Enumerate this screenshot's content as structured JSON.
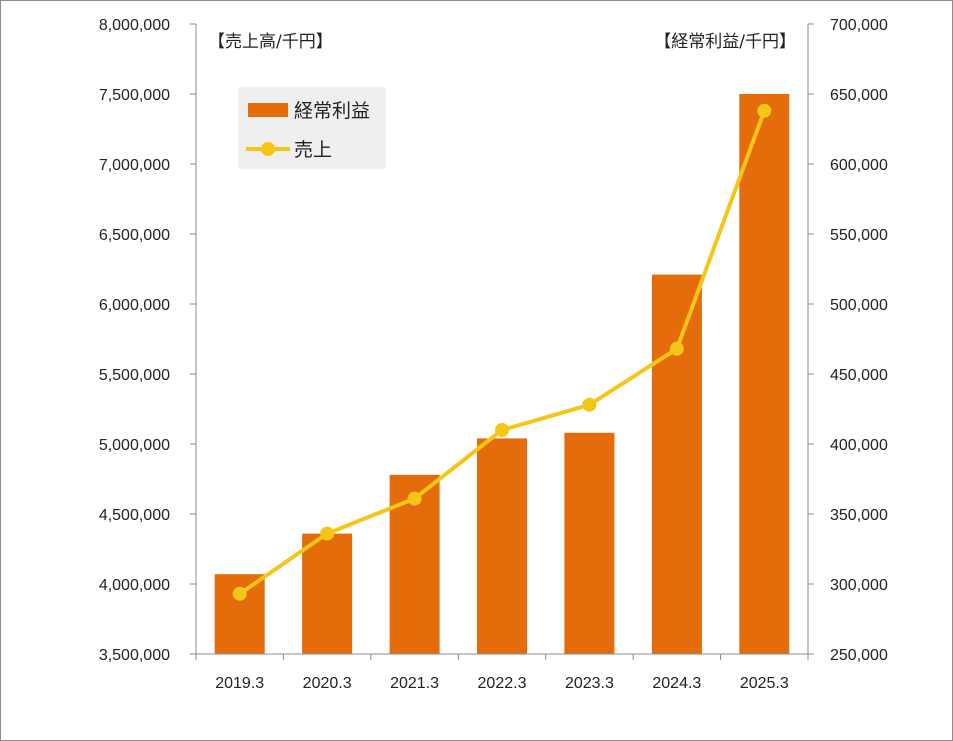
{
  "chart_data": {
    "type": "bar",
    "categories": [
      "2019.3",
      "2020.3",
      "2021.3",
      "2022.3",
      "2023.3",
      "2024.3",
      "2025.3"
    ],
    "left_axis": {
      "unit_label": "【売上高/千円】",
      "min": 3500000,
      "max": 8000000,
      "step": 500000,
      "ticks": [
        "3,500,000",
        "4,000,000",
        "4,500,000",
        "5,000,000",
        "5,500,000",
        "6,000,000",
        "6,500,000",
        "7,000,000",
        "7,500,000",
        "8,000,000"
      ]
    },
    "right_axis": {
      "unit_label": "【経常利益/千円】",
      "min": 250000,
      "max": 700000,
      "step": 50000,
      "ticks": [
        "250,000",
        "300,000",
        "350,000",
        "400,000",
        "450,000",
        "500,000",
        "550,000",
        "600,000",
        "650,000",
        "700,000"
      ]
    },
    "series": [
      {
        "name": "経常利益",
        "type": "bar",
        "axis": "right",
        "color": "#E46C0A",
        "values": [
          307000,
          336000,
          378000,
          404000,
          408000,
          521000,
          650000
        ]
      },
      {
        "name": "売上",
        "type": "line",
        "axis": "left",
        "color": "#F5C518",
        "values": [
          3930000,
          4360000,
          4610000,
          5100000,
          5280000,
          5680000,
          7380000
        ]
      }
    ],
    "legend": {
      "placement": "top-left",
      "background": "#EFEFEF"
    },
    "grid": false
  }
}
